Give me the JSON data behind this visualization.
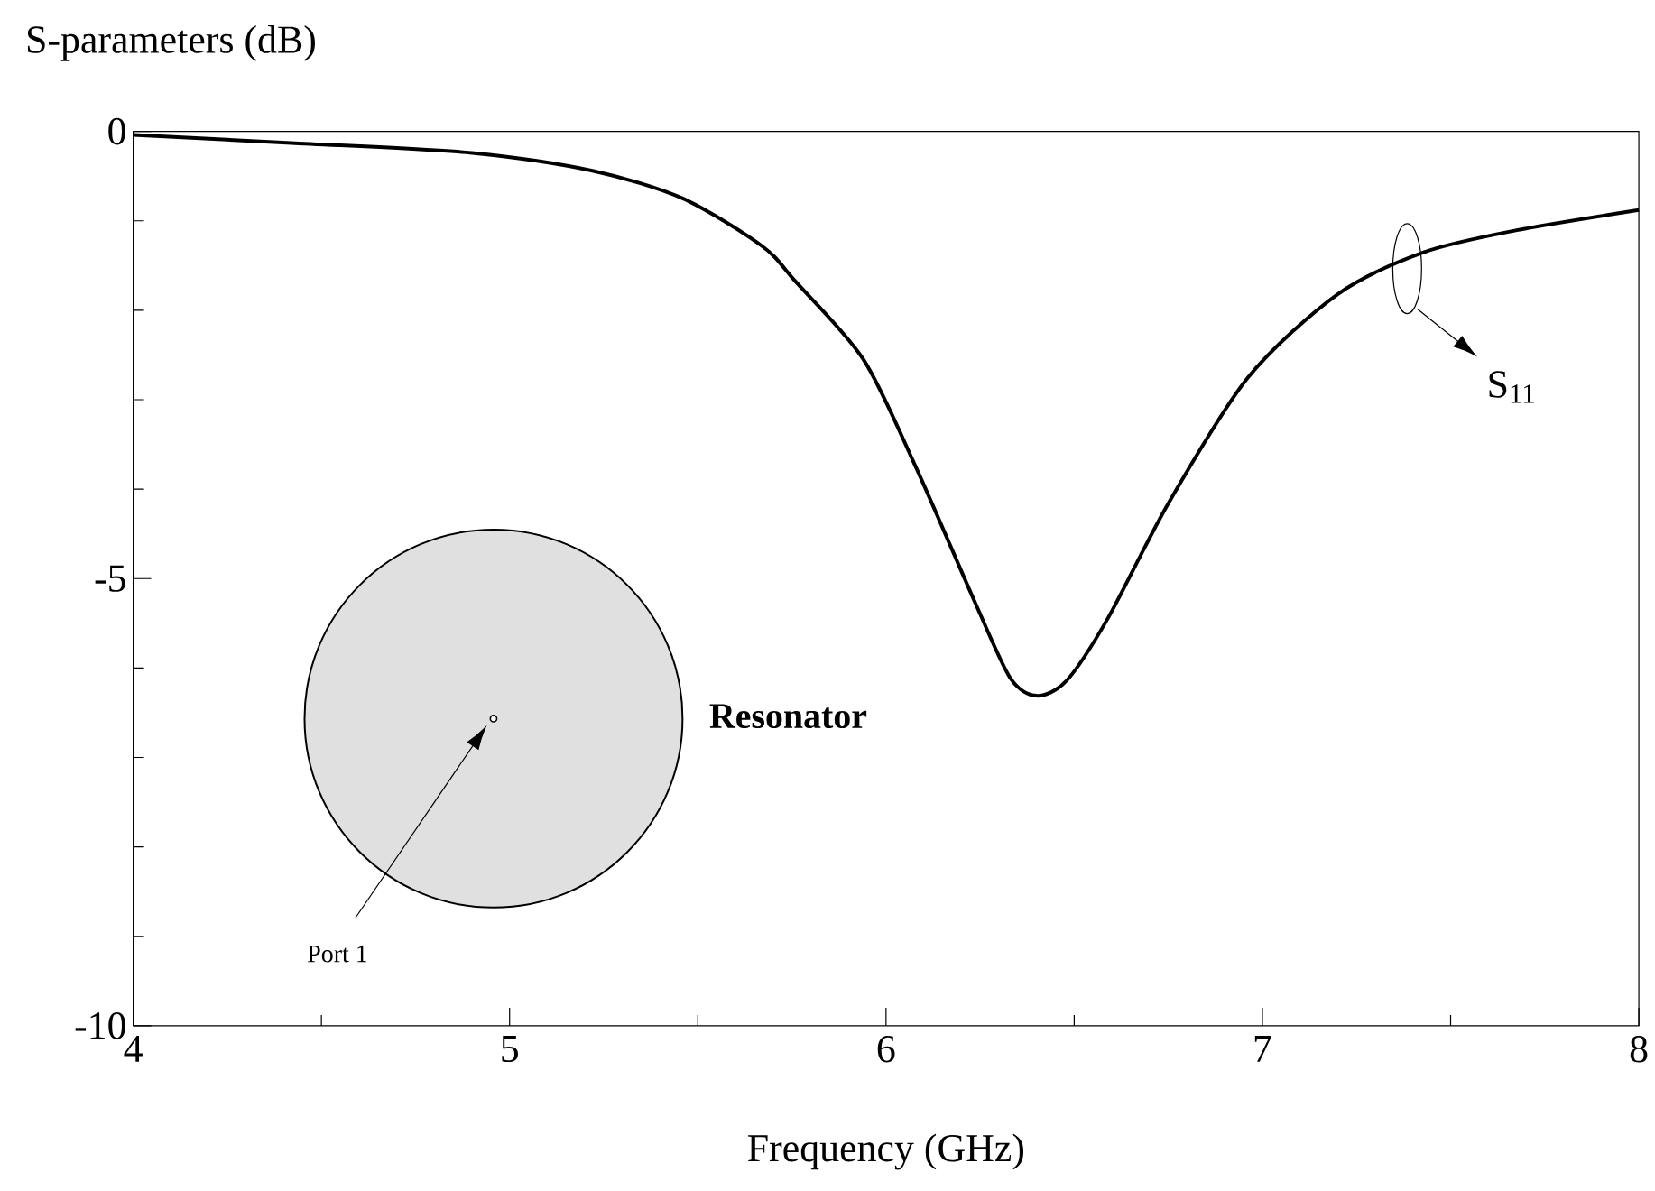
{
  "chart_data": {
    "type": "line",
    "ylabel": "S-parameters (dB)",
    "xlabel": "Frequency (GHz)",
    "x": [
      4.0,
      4.42,
      4.9,
      5.22,
      5.46,
      5.67,
      5.76,
      5.94,
      6.08,
      6.24,
      6.33,
      6.4,
      6.48,
      6.59,
      6.75,
      6.96,
      7.2,
      7.43,
      7.67,
      8.0
    ],
    "series": [
      {
        "name": "S$_{11}$",
        "color": "#000000",
        "values": [
          -0.04,
          -0.13,
          -0.24,
          -0.44,
          -0.75,
          -1.28,
          -1.68,
          -2.55,
          -3.76,
          -5.3,
          -6.11,
          -6.31,
          -6.14,
          -5.44,
          -4.16,
          -2.76,
          -1.82,
          -1.35,
          -1.11,
          -0.88
        ]
      }
    ],
    "xlim": [
      4,
      8
    ],
    "ylim": [
      -10,
      0
    ],
    "xticks": [
      4,
      {
        "value": 4.5,
        "label": null
      },
      5,
      {
        "value": 5.5,
        "label": null
      },
      6,
      {
        "value": 6.5,
        "label": null
      },
      7,
      {
        "value": 7.5,
        "label": null
      },
      8
    ],
    "yticks": [
      -10,
      {
        "value": -9,
        "label": null
      },
      {
        "value": -8,
        "label": null
      },
      {
        "value": -7,
        "label": null
      },
      {
        "value": -6,
        "label": null
      },
      -5,
      {
        "value": -4,
        "label": null
      },
      {
        "value": -3,
        "label": null
      },
      {
        "value": -2,
        "label": null
      },
      {
        "value": -1,
        "label": null
      },
      0
    ],
    "annotations": [
      "Resonator",
      "Port 1"
    ]
  }
}
